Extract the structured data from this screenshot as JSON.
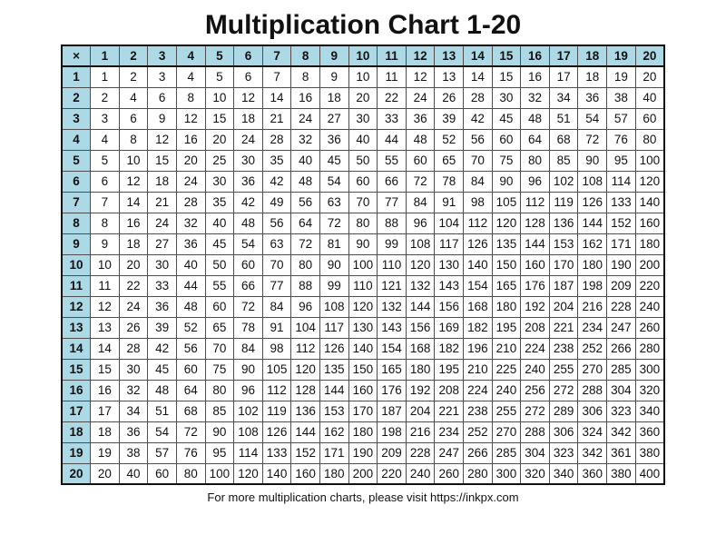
{
  "page": {
    "title": "Multiplication Chart 1-20",
    "footer_note": "For more multiplication charts, please visit https://inkpx.com"
  },
  "colors": {
    "background": "#ffffff",
    "header_cell_bg": "#add8e6",
    "grid_line": "#4d4d4d",
    "outer_border": "#111111",
    "text": "#111111"
  },
  "chart_data": {
    "type": "table",
    "title": "Multiplication Chart 1-20",
    "corner_label": "×",
    "column_headers": [
      1,
      2,
      3,
      4,
      5,
      6,
      7,
      8,
      9,
      10,
      11,
      12,
      13,
      14,
      15,
      16,
      17,
      18,
      19,
      20
    ],
    "row_headers": [
      1,
      2,
      3,
      4,
      5,
      6,
      7,
      8,
      9,
      10,
      11,
      12,
      13,
      14,
      15,
      16,
      17,
      18,
      19,
      20
    ],
    "rows": [
      [
        1,
        2,
        3,
        4,
        5,
        6,
        7,
        8,
        9,
        10,
        11,
        12,
        13,
        14,
        15,
        16,
        17,
        18,
        19,
        20
      ],
      [
        2,
        4,
        6,
        8,
        10,
        12,
        14,
        16,
        18,
        20,
        22,
        24,
        26,
        28,
        30,
        32,
        34,
        36,
        38,
        40
      ],
      [
        3,
        6,
        9,
        12,
        15,
        18,
        21,
        24,
        27,
        30,
        33,
        36,
        39,
        42,
        45,
        48,
        51,
        54,
        57,
        60
      ],
      [
        4,
        8,
        12,
        16,
        20,
        24,
        28,
        32,
        36,
        40,
        44,
        48,
        52,
        56,
        60,
        64,
        68,
        72,
        76,
        80
      ],
      [
        5,
        10,
        15,
        20,
        25,
        30,
        35,
        40,
        45,
        50,
        55,
        60,
        65,
        70,
        75,
        80,
        85,
        90,
        95,
        100
      ],
      [
        6,
        12,
        18,
        24,
        30,
        36,
        42,
        48,
        54,
        60,
        66,
        72,
        78,
        84,
        90,
        96,
        102,
        108,
        114,
        120
      ],
      [
        7,
        14,
        21,
        28,
        35,
        42,
        49,
        56,
        63,
        70,
        77,
        84,
        91,
        98,
        105,
        112,
        119,
        126,
        133,
        140
      ],
      [
        8,
        16,
        24,
        32,
        40,
        48,
        56,
        64,
        72,
        80,
        88,
        96,
        104,
        112,
        120,
        128,
        136,
        144,
        152,
        160
      ],
      [
        9,
        18,
        27,
        36,
        45,
        54,
        63,
        72,
        81,
        90,
        99,
        108,
        117,
        126,
        135,
        144,
        153,
        162,
        171,
        180
      ],
      [
        10,
        20,
        30,
        40,
        50,
        60,
        70,
        80,
        90,
        100,
        110,
        120,
        130,
        140,
        150,
        160,
        170,
        180,
        190,
        200
      ],
      [
        11,
        22,
        33,
        44,
        55,
        66,
        77,
        88,
        99,
        110,
        121,
        132,
        143,
        154,
        165,
        176,
        187,
        198,
        209,
        220
      ],
      [
        12,
        24,
        36,
        48,
        60,
        72,
        84,
        96,
        108,
        120,
        132,
        144,
        156,
        168,
        180,
        192,
        204,
        216,
        228,
        240
      ],
      [
        13,
        26,
        39,
        52,
        65,
        78,
        91,
        104,
        117,
        130,
        143,
        156,
        169,
        182,
        195,
        208,
        221,
        234,
        247,
        260
      ],
      [
        14,
        28,
        42,
        56,
        70,
        84,
        98,
        112,
        126,
        140,
        154,
        168,
        182,
        196,
        210,
        224,
        238,
        252,
        266,
        280
      ],
      [
        15,
        30,
        45,
        60,
        75,
        90,
        105,
        120,
        135,
        150,
        165,
        180,
        195,
        210,
        225,
        240,
        255,
        270,
        285,
        300
      ],
      [
        16,
        32,
        48,
        64,
        80,
        96,
        112,
        128,
        144,
        160,
        176,
        192,
        208,
        224,
        240,
        256,
        272,
        288,
        304,
        320
      ],
      [
        17,
        34,
        51,
        68,
        85,
        102,
        119,
        136,
        153,
        170,
        187,
        204,
        221,
        238,
        255,
        272,
        289,
        306,
        323,
        340
      ],
      [
        18,
        36,
        54,
        72,
        90,
        108,
        126,
        144,
        162,
        180,
        198,
        216,
        234,
        252,
        270,
        288,
        306,
        324,
        342,
        360
      ],
      [
        19,
        38,
        57,
        76,
        95,
        114,
        133,
        152,
        171,
        190,
        209,
        228,
        247,
        266,
        285,
        304,
        323,
        342,
        361,
        380
      ],
      [
        20,
        40,
        60,
        80,
        100,
        120,
        140,
        160,
        180,
        200,
        220,
        240,
        260,
        280,
        300,
        320,
        340,
        360,
        380,
        400
      ]
    ]
  }
}
